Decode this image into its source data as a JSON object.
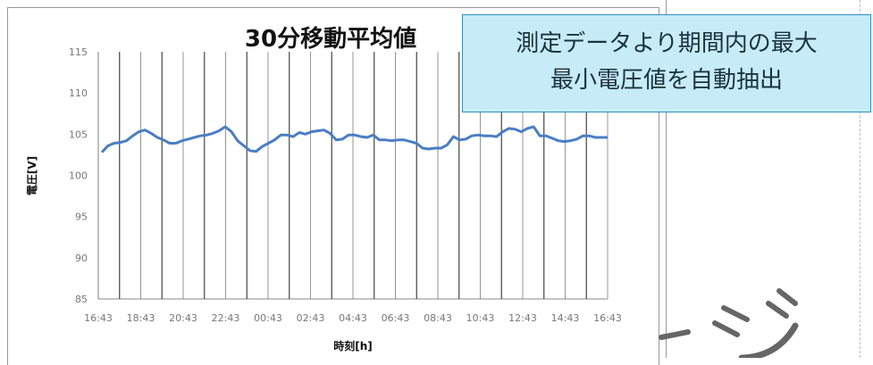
{
  "callout": {
    "line1": "測定データより期間内の最大",
    "line2": "最小電圧値を自動抽出"
  },
  "colors": {
    "series": "#4a7ec4",
    "callout_bg": "#c7ecf8",
    "callout_border": "#2f8fc0"
  },
  "chart_data": {
    "type": "line",
    "title": "30分移動平均値",
    "ylabel": "電圧[V]",
    "xlabel": "時刻[h]",
    "ylim": [
      85,
      115
    ],
    "yticks": [
      85,
      90,
      95,
      100,
      105,
      110,
      115
    ],
    "xticks": [
      "16:43",
      "18:43",
      "20:43",
      "22:43",
      "00:43",
      "02:43",
      "04:43",
      "06:43",
      "08:43",
      "10:43",
      "12:43",
      "14:43",
      "16:43"
    ],
    "grid": "vertical",
    "series": [
      {
        "values": [
          102.8,
          103.6,
          103.9,
          104.0,
          104.2,
          104.8,
          105.3,
          105.5,
          105.1,
          104.6,
          104.3,
          103.9,
          103.9,
          104.2,
          104.4,
          104.6,
          104.8,
          104.9,
          105.1,
          105.4,
          105.9,
          105.3,
          104.2,
          103.6,
          103.0,
          102.9,
          103.5,
          103.9,
          104.3,
          104.9,
          104.9,
          104.7,
          105.2,
          105.0,
          105.3,
          105.4,
          105.5,
          105.1,
          104.3,
          104.4,
          104.9,
          104.9,
          104.7,
          104.6,
          104.9,
          104.3,
          104.3,
          104.2,
          104.3,
          104.3,
          104.1,
          103.9,
          103.3,
          103.2,
          103.3,
          103.3,
          103.7,
          104.7,
          104.3,
          104.4,
          104.8,
          104.9,
          104.8,
          104.8,
          104.7,
          105.3,
          105.7,
          105.6,
          105.3,
          105.7,
          105.9,
          104.8,
          104.8,
          104.5,
          104.2,
          104.1,
          104.2,
          104.4,
          104.8,
          104.8,
          104.6,
          104.6,
          104.6
        ]
      }
    ]
  }
}
